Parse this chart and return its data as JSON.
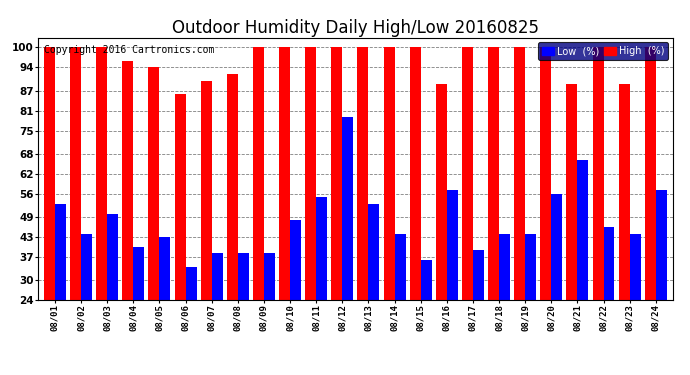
{
  "title": "Outdoor Humidity Daily High/Low 20160825",
  "copyright": "Copyright 2016 Cartronics.com",
  "dates": [
    "08/01",
    "08/02",
    "08/03",
    "08/04",
    "08/05",
    "08/06",
    "08/07",
    "08/08",
    "08/09",
    "08/10",
    "08/11",
    "08/12",
    "08/13",
    "08/14",
    "08/15",
    "08/16",
    "08/17",
    "08/18",
    "08/19",
    "08/20",
    "08/21",
    "08/22",
    "08/23",
    "08/24"
  ],
  "high": [
    100,
    100,
    100,
    96,
    94,
    86,
    90,
    92,
    100,
    100,
    100,
    100,
    100,
    100,
    100,
    89,
    100,
    100,
    100,
    100,
    89,
    100,
    89,
    100
  ],
  "low": [
    53,
    44,
    50,
    40,
    43,
    34,
    38,
    38,
    38,
    48,
    55,
    79,
    53,
    44,
    36,
    57,
    39,
    44,
    44,
    56,
    66,
    46,
    44,
    57
  ],
  "high_color": "#ff0000",
  "low_color": "#0000ff",
  "bg_color": "#ffffff",
  "ylim_min": 24,
  "ylim_max": 103,
  "yticks": [
    24,
    30,
    37,
    43,
    49,
    56,
    62,
    68,
    75,
    81,
    87,
    94,
    100
  ],
  "bar_width": 0.42,
  "legend_label_low": "Low  (%)",
  "legend_label_high": "High  (%)",
  "title_fontsize": 12,
  "copyright_fontsize": 7
}
